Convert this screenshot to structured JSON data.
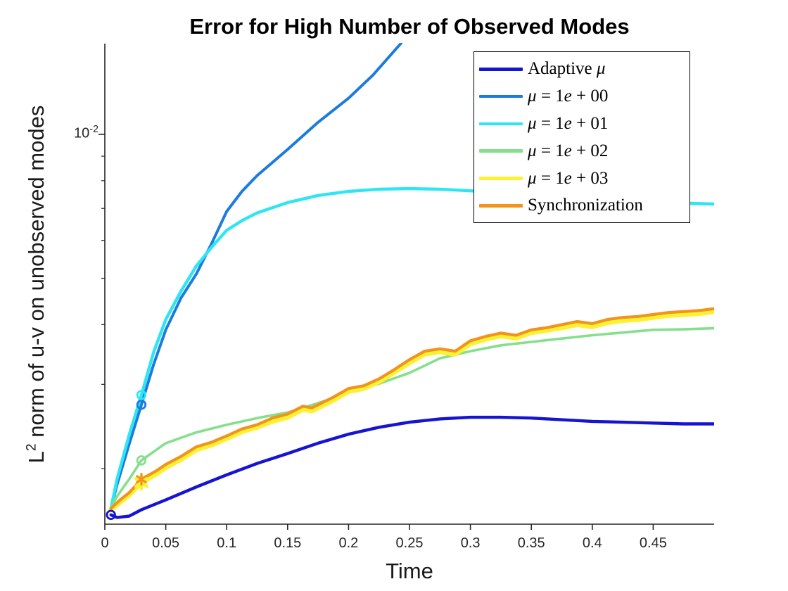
{
  "figure": {
    "title": "Error for High Number of Observed Modes",
    "xlabel": "Time",
    "ylabel": {
      "base": "L",
      "sup": "2",
      "rest": " norm of u-v on unobserved modes"
    }
  },
  "legend": {
    "entries": [
      {
        "series": "adaptive-mu",
        "parts": [
          {
            "text": "Adaptive ",
            "italic": false
          },
          {
            "text": "μ",
            "italic": true
          }
        ]
      },
      {
        "series": "mu-1e00",
        "parts": [
          {
            "text": "μ",
            "italic": true
          },
          {
            "text": " = 1",
            "italic": false
          },
          {
            "text": "e",
            "italic": true
          },
          {
            "text": " + 00",
            "italic": false
          }
        ]
      },
      {
        "series": "mu-1e01",
        "parts": [
          {
            "text": "μ",
            "italic": true
          },
          {
            "text": " = 1",
            "italic": false
          },
          {
            "text": "e",
            "italic": true
          },
          {
            "text": " + 01",
            "italic": false
          }
        ]
      },
      {
        "series": "mu-1e02",
        "parts": [
          {
            "text": "μ",
            "italic": true
          },
          {
            "text": " = 1",
            "italic": false
          },
          {
            "text": "e",
            "italic": true
          },
          {
            "text": " + 02",
            "italic": false
          }
        ]
      },
      {
        "series": "mu-1e03",
        "parts": [
          {
            "text": "μ",
            "italic": true
          },
          {
            "text": " = 1",
            "italic": false
          },
          {
            "text": "e",
            "italic": true
          },
          {
            "text": " + 03",
            "italic": false
          }
        ]
      },
      {
        "series": "synchronization",
        "parts": [
          {
            "text": "Synchronization",
            "italic": false
          }
        ]
      }
    ]
  },
  "chart_data": {
    "type": "line",
    "title": "Error for High Number of Observed Modes",
    "xlabel": "Time",
    "ylabel": "L^2 norm of u-v on unobserved modes",
    "x_axis": {
      "lim": [
        0,
        0.5
      ],
      "ticks": [
        0,
        0.05,
        0.1,
        0.15,
        0.2,
        0.25,
        0.3,
        0.35,
        0.4,
        0.45
      ],
      "tick_labels": [
        "0",
        "0.05",
        "0.1",
        "0.15",
        "0.2",
        "0.25",
        "0.3",
        "0.35",
        "0.4",
        "0.45"
      ]
    },
    "y_axis": {
      "scale": "log",
      "lim": [
        0.00153,
        0.01548
      ],
      "major_tick": 0.01,
      "major_tick_label": {
        "base": "10",
        "exp": "-2"
      },
      "minor_ticks": [
        0.009,
        0.008,
        0.007,
        0.006,
        0.005,
        0.004,
        0.003,
        0.002
      ]
    },
    "legend_position": "top-right-inside",
    "grid": false,
    "series": [
      {
        "id": "adaptive-mu",
        "name": "Adaptive μ",
        "color": "#1414D2",
        "marker": "o",
        "marker_x": 0.005,
        "x": [
          0.005,
          0.01,
          0.02,
          0.03,
          0.05,
          0.075,
          0.1,
          0.125,
          0.15,
          0.175,
          0.2,
          0.225,
          0.25,
          0.275,
          0.3,
          0.325,
          0.35,
          0.375,
          0.4,
          0.425,
          0.45,
          0.475,
          0.5
        ],
        "y": [
          0.0016,
          0.00158,
          0.00159,
          0.00164,
          0.00172,
          0.00183,
          0.00194,
          0.00205,
          0.00215,
          0.00226,
          0.00236,
          0.00244,
          0.0025,
          0.00254,
          0.00256,
          0.00256,
          0.00255,
          0.00253,
          0.00251,
          0.0025,
          0.00249,
          0.00248,
          0.00248
        ]
      },
      {
        "id": "mu-1e00",
        "name": "μ = 1e+00",
        "color": "#1B7CDD",
        "marker": "o",
        "marker_x": 0.03,
        "x": [
          0.005,
          0.01,
          0.02,
          0.03,
          0.04,
          0.05,
          0.0625,
          0.075,
          0.0875,
          0.1,
          0.1125,
          0.125,
          0.15,
          0.175,
          0.2,
          0.22,
          0.243
        ],
        "y": [
          0.00165,
          0.00185,
          0.00225,
          0.00272,
          0.0033,
          0.0039,
          0.00455,
          0.0051,
          0.0059,
          0.0069,
          0.0076,
          0.0082,
          0.0093,
          0.0106,
          0.0119,
          0.0133,
          0.0155
        ]
      },
      {
        "id": "mu-1e01",
        "name": "μ = 1e+01",
        "color": "#30E5F2",
        "marker": "o",
        "marker_x": 0.03,
        "x": [
          0.005,
          0.01,
          0.02,
          0.03,
          0.04,
          0.05,
          0.0625,
          0.075,
          0.0875,
          0.1,
          0.1125,
          0.125,
          0.15,
          0.175,
          0.2,
          0.225,
          0.25,
          0.275,
          0.3,
          0.325,
          0.35,
          0.375,
          0.4,
          0.425,
          0.45,
          0.475,
          0.5
        ],
        "y": [
          0.00165,
          0.0019,
          0.00235,
          0.00285,
          0.0035,
          0.0041,
          0.0047,
          0.0053,
          0.0058,
          0.0063,
          0.0066,
          0.00685,
          0.0072,
          0.00745,
          0.0076,
          0.00768,
          0.0077,
          0.00768,
          0.00762,
          0.00755,
          0.00747,
          0.0074,
          0.00733,
          0.00727,
          0.00722,
          0.00718,
          0.00715
        ]
      },
      {
        "id": "mu-1e02",
        "name": "μ = 1e+02",
        "color": "#86DF8C",
        "marker": "o",
        "marker_x": 0.03,
        "x": [
          0.005,
          0.01,
          0.02,
          0.03,
          0.05,
          0.075,
          0.1,
          0.125,
          0.15,
          0.175,
          0.2,
          0.225,
          0.25,
          0.275,
          0.3,
          0.325,
          0.35,
          0.375,
          0.4,
          0.425,
          0.45,
          0.475,
          0.5
        ],
        "y": [
          0.00165,
          0.00175,
          0.0019,
          0.00208,
          0.00226,
          0.00238,
          0.00247,
          0.00255,
          0.00262,
          0.00274,
          0.00288,
          0.00301,
          0.00317,
          0.0034,
          0.00352,
          0.00362,
          0.00368,
          0.00374,
          0.0038,
          0.00385,
          0.0039,
          0.00391,
          0.00393
        ]
      },
      {
        "id": "mu-1e03",
        "name": "μ = 1e+03",
        "color": "#FAF233",
        "marker": "*",
        "marker_x": 0.03,
        "x": [
          0.005,
          0.0125,
          0.02,
          0.03,
          0.0425,
          0.05,
          0.0625,
          0.075,
          0.0875,
          0.1,
          0.1125,
          0.125,
          0.1375,
          0.15,
          0.1625,
          0.17,
          0.1875,
          0.2,
          0.2125,
          0.225,
          0.2375,
          0.25,
          0.2625,
          0.275,
          0.2875,
          0.3,
          0.3125,
          0.325,
          0.3375,
          0.35,
          0.3625,
          0.375,
          0.3875,
          0.4,
          0.4125,
          0.425,
          0.4375,
          0.45,
          0.4625,
          0.475,
          0.4875,
          0.5
        ],
        "y": [
          0.00164,
          0.0017,
          0.00176,
          0.00187,
          0.00195,
          0.00201,
          0.00209,
          0.00219,
          0.00224,
          0.00231,
          0.00239,
          0.00244,
          0.00251,
          0.00256,
          0.00266,
          0.00264,
          0.00278,
          0.0029,
          0.00294,
          0.00304,
          0.00318,
          0.00333,
          0.00347,
          0.00351,
          0.00347,
          0.00365,
          0.00373,
          0.00379,
          0.00375,
          0.00385,
          0.00389,
          0.00394,
          0.004,
          0.00396,
          0.00404,
          0.00408,
          0.0041,
          0.00414,
          0.00418,
          0.0042,
          0.00422,
          0.00426
        ]
      },
      {
        "id": "synchronization",
        "name": "Synchronization",
        "color": "#F2931D",
        "marker": "*",
        "marker_x": 0.03,
        "x": [
          0.005,
          0.0125,
          0.02,
          0.03,
          0.0425,
          0.05,
          0.0625,
          0.075,
          0.0875,
          0.1,
          0.1125,
          0.125,
          0.1375,
          0.15,
          0.1625,
          0.17,
          0.1875,
          0.2,
          0.2125,
          0.225,
          0.2375,
          0.25,
          0.2625,
          0.275,
          0.2875,
          0.3,
          0.3125,
          0.325,
          0.3375,
          0.35,
          0.3625,
          0.375,
          0.3875,
          0.4,
          0.4125,
          0.425,
          0.4375,
          0.45,
          0.4625,
          0.475,
          0.4875,
          0.5
        ],
        "y": [
          0.00165,
          0.00172,
          0.00178,
          0.0019,
          0.00198,
          0.00204,
          0.00212,
          0.00222,
          0.00227,
          0.00234,
          0.00242,
          0.00247,
          0.00255,
          0.0026,
          0.0027,
          0.00268,
          0.00282,
          0.00294,
          0.00298,
          0.00308,
          0.00322,
          0.00338,
          0.00352,
          0.00356,
          0.00352,
          0.0037,
          0.00378,
          0.00384,
          0.0038,
          0.0039,
          0.00394,
          0.004,
          0.00406,
          0.00402,
          0.0041,
          0.00414,
          0.00416,
          0.0042,
          0.00424,
          0.00426,
          0.00428,
          0.00432
        ]
      }
    ]
  }
}
